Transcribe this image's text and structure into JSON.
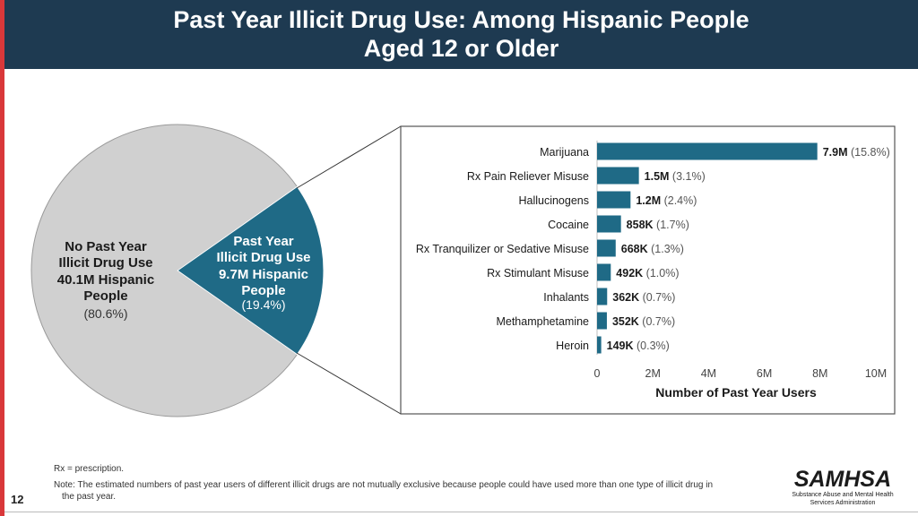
{
  "header": {
    "title_line1": "Past Year Illicit Drug Use: Among Hispanic People",
    "title_line2": "Aged 12 or Older"
  },
  "colors": {
    "header_bg": "#1e3a51",
    "accent_red": "#d9383a",
    "pie_gray": "#d0d0d0",
    "teal": "#1f6a86"
  },
  "chart_data": [
    {
      "type": "pie",
      "slices": [
        {
          "name": "No Past Year Illicit Drug Use",
          "value_millions": 40.1,
          "percent": 80.6,
          "label_lines": [
            "No Past Year",
            "Illicit Drug Use",
            "40.1M Hispanic",
            "People",
            "(80.6%)"
          ]
        },
        {
          "name": "Past Year Illicit Drug Use",
          "value_millions": 9.7,
          "percent": 19.4,
          "label_lines": [
            "Past Year",
            "Illicit Drug Use",
            "9.7M Hispanic",
            "People",
            "(19.4%)"
          ]
        }
      ]
    },
    {
      "type": "bar",
      "orientation": "horizontal",
      "xlabel": "Number of Past Year Users",
      "xlim": [
        0,
        10000000
      ],
      "ticks": [
        {
          "value": 0,
          "label": "0"
        },
        {
          "value": 2000000,
          "label": "2M"
        },
        {
          "value": 4000000,
          "label": "4M"
        },
        {
          "value": 6000000,
          "label": "6M"
        },
        {
          "value": 8000000,
          "label": "8M"
        },
        {
          "value": 10000000,
          "label": "10M"
        }
      ],
      "categories": [
        "Marijuana",
        "Rx Pain Reliever Misuse",
        "Hallucinogens",
        "Cocaine",
        "Rx Tranquilizer or Sedative Misuse",
        "Rx Stimulant Misuse",
        "Inhalants",
        "Methamphetamine",
        "Heroin"
      ],
      "values": [
        7900000,
        1500000,
        1200000,
        858000,
        668000,
        492000,
        362000,
        352000,
        149000
      ],
      "value_labels": [
        "7.9M",
        "1.5M",
        "1.2M",
        "858K",
        "668K",
        "492K",
        "362K",
        "352K",
        "149K"
      ],
      "percent_labels": [
        "(15.8%)",
        "(3.1%)",
        "(2.4%)",
        "(1.7%)",
        "(1.3%)",
        "(1.0%)",
        "(0.7%)",
        "(0.7%)",
        "(0.3%)"
      ]
    }
  ],
  "footer": {
    "rx_note": "Rx = prescription.",
    "note_line1": "Note: The estimated numbers of past year users of different illicit drugs are not mutually exclusive because people could have used more than one type of illicit drug in",
    "note_line2": "the past year.",
    "slide_number": "12",
    "logo_text": "SAMHSA",
    "logo_subtitle_line1": "Substance Abuse and Mental Health",
    "logo_subtitle_line2": "Services Administration"
  }
}
